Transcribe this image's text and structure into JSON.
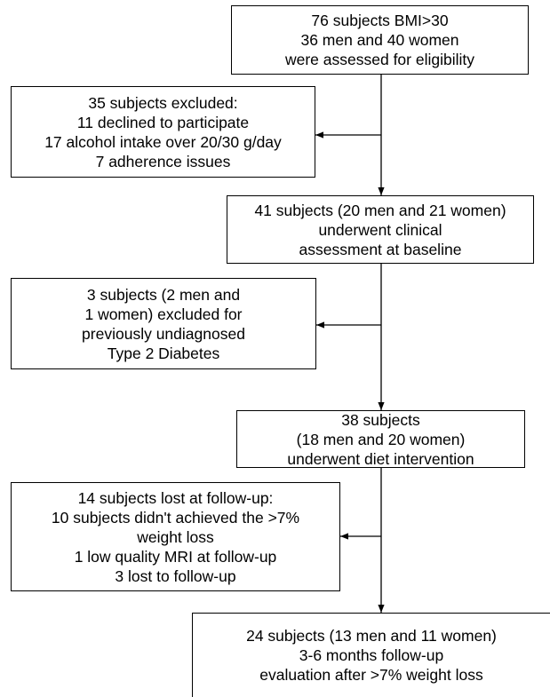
{
  "flowchart": {
    "boxes": {
      "assessed": {
        "lines": [
          "76 subjects BMI>30",
          "36 men and 40 women",
          "were assessed for eligibility"
        ]
      },
      "excluded_eligibility": {
        "lines": [
          "35 subjects excluded:",
          "11 declined to participate",
          "17 alcohol intake over 20/30 g/day",
          "7 adherence issues"
        ]
      },
      "baseline": {
        "lines": [
          "41 subjects (20 men and 21 women)",
          "underwent clinical",
          "assessment at baseline"
        ]
      },
      "excluded_diabetes": {
        "lines": [
          "3 subjects (2 men and",
          "1 women) excluded for",
          "previously undiagnosed",
          "Type 2 Diabetes"
        ]
      },
      "intervention": {
        "lines": [
          "38 subjects",
          "(18 men and 20 women)",
          "underwent diet intervention"
        ]
      },
      "lost_followup": {
        "lines": [
          "14 subjects lost at follow-up:",
          "10 subjects didn't achieved the >7%",
          "weight loss",
          "1 low quality MRI at follow-up",
          "3 lost to follow-up"
        ]
      },
      "final": {
        "lines": [
          "24 subjects (13 men and 11 women)",
          "3-6 months follow-up",
          "evaluation after >7% weight loss"
        ]
      }
    }
  }
}
